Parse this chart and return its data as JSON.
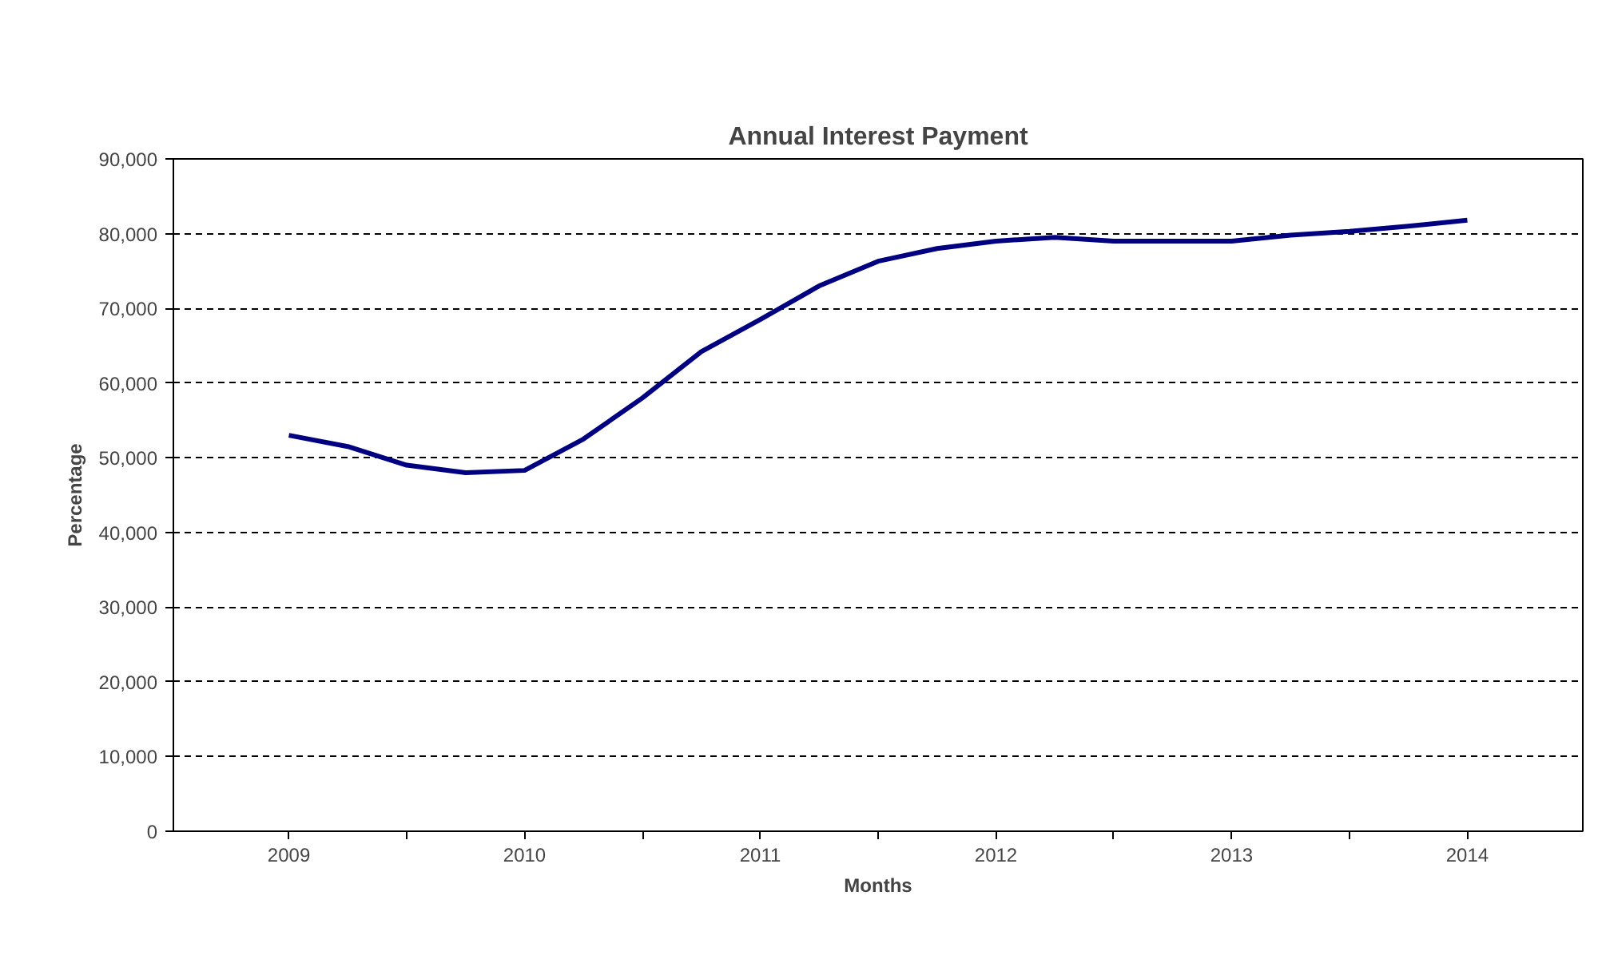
{
  "chart_data": {
    "type": "line",
    "title": "Annual Interest Payment",
    "xlabel": "Months",
    "ylabel": "Percentage",
    "x": [
      2009,
      2009.25,
      2009.5,
      2009.75,
      2010,
      2010.25,
      2010.5,
      2010.75,
      2011,
      2011.25,
      2011.5,
      2011.75,
      2012,
      2012.25,
      2012.5,
      2012.75,
      2013,
      2013.25,
      2013.5,
      2013.75,
      2014
    ],
    "series": [
      {
        "color": "#000080",
        "values": [
          53000,
          51500,
          49000,
          48000,
          48300,
          52500,
          58000,
          64200,
          68500,
          73000,
          76300,
          78000,
          79000,
          79500,
          79000,
          79000,
          79000,
          79800,
          80300,
          81000,
          81800
        ]
      }
    ],
    "xlim": [
      2008.51,
      2014.49
    ],
    "xticks": [
      2009,
      2010,
      2011,
      2012,
      2013,
      2014,
      {
        "value": 2009.5,
        "label": null
      },
      {
        "value": 2010.5,
        "label": null
      },
      {
        "value": 2011.5,
        "label": null
      },
      {
        "value": 2012.5,
        "label": null
      },
      {
        "value": 2013.5,
        "label": null
      }
    ],
    "ylim": [
      0,
      90000
    ],
    "yticks": [
      0,
      {
        "value": 10000,
        "label": "10,000"
      },
      {
        "value": 20000,
        "label": "20,000"
      },
      {
        "value": 30000,
        "label": "30,000"
      },
      {
        "value": 40000,
        "label": "40,000"
      },
      {
        "value": 50000,
        "label": "50,000"
      },
      {
        "value": 60000,
        "label": "60,000"
      },
      {
        "value": 70000,
        "label": "70,000"
      },
      {
        "value": 80000,
        "label": "80,000"
      },
      {
        "value": 90000,
        "label": "90,000"
      }
    ],
    "grid": "y",
    "marker": "none",
    "line_style": "solid"
  }
}
